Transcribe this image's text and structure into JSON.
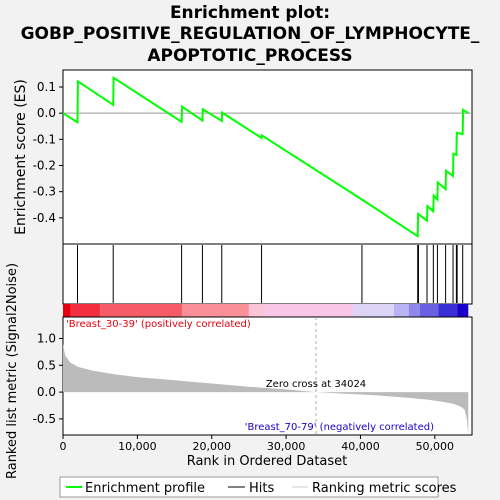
{
  "chart_data": {
    "type": "line",
    "title_lines": [
      "Enrichment plot:",
      "GOBP_POSITIVE_REGULATION_OF_LYMPHOCYTE_",
      "APOPTOTIC_PROCESS"
    ],
    "xlabel": "Rank in Ordered Dataset",
    "xlim": [
      0,
      55000
    ],
    "x_ticks": [
      0,
      10000,
      20000,
      30000,
      40000,
      50000
    ],
    "x_tick_labels": [
      "0",
      "10,000",
      "20,000",
      "30,000",
      "40,000",
      "50,000"
    ],
    "es_panel": {
      "ylabel": "Enrichment score (ES)",
      "ylim": [
        -0.5,
        0.165
      ],
      "y_ticks": [
        -0.4,
        -0.3,
        -0.2,
        -0.1,
        0.0,
        0.1
      ],
      "y_tick_labels": [
        "-0.4",
        "-0.3",
        "-0.2",
        "-0.1",
        "0.0",
        "0.1"
      ],
      "series": [
        {
          "name": "Enrichment profile",
          "color": "#00ff00",
          "x": [
            0,
            1950,
            2000,
            6750,
            6800,
            15950,
            16000,
            18750,
            18800,
            21350,
            21400,
            26700,
            26750,
            40200,
            47700,
            47750,
            48950,
            49000,
            49800,
            49850,
            50350,
            50400,
            51450,
            51500,
            52450,
            52500,
            52900,
            52950,
            53750,
            53800,
            54500
          ],
          "y": [
            0.0,
            -0.035,
            0.122,
            0.032,
            0.135,
            -0.033,
            0.025,
            -0.028,
            0.015,
            -0.03,
            0.002,
            -0.095,
            -0.085,
            -0.33,
            -0.47,
            -0.385,
            -0.41,
            -0.355,
            -0.375,
            -0.315,
            -0.33,
            -0.265,
            -0.29,
            -0.22,
            -0.24,
            -0.155,
            -0.16,
            -0.075,
            -0.08,
            0.013,
            0.0
          ]
        }
      ]
    },
    "hits": [
      1950,
      6750,
      15950,
      18750,
      21350,
      26700,
      40200,
      47700,
      47800,
      48950,
      49800,
      50350,
      51450,
      52450,
      52900,
      53000,
      53750
    ],
    "ranking_bar": {
      "segments": [
        {
          "from": 0,
          "to": 1000,
          "color": "#e8000e"
        },
        {
          "from": 1000,
          "to": 5000,
          "color": "#f32e3e"
        },
        {
          "from": 5000,
          "to": 16000,
          "color": "#f65c68"
        },
        {
          "from": 16000,
          "to": 25000,
          "color": "#f99098"
        },
        {
          "from": 25000,
          "to": 27000,
          "color": "#fbc5d6"
        },
        {
          "from": 27000,
          "to": 39000,
          "color": "#f9c7e6"
        },
        {
          "from": 39000,
          "to": 44500,
          "color": "#dcd5f6"
        },
        {
          "from": 44500,
          "to": 46500,
          "color": "#b8b3f2"
        },
        {
          "from": 46500,
          "to": 48000,
          "color": "#8f88ea"
        },
        {
          "from": 48000,
          "to": 50500,
          "color": "#6a60e2"
        },
        {
          "from": 50500,
          "to": 53000,
          "color": "#3a2fd6"
        },
        {
          "from": 53000,
          "to": 54500,
          "color": "#1800c8"
        }
      ]
    },
    "metric_panel": {
      "ylabel": "Ranked list metric (Signal2Noise)",
      "ylim": [
        -0.8,
        1.4
      ],
      "y_ticks": [
        -0.5,
        0.0,
        0.5,
        1.0
      ],
      "y_tick_labels": [
        "-0.5",
        "0.0",
        "0.5",
        "1.0"
      ],
      "x": [
        0,
        300,
        1000,
        2000,
        4000,
        7000,
        10000,
        15000,
        20000,
        25000,
        30000,
        34024,
        38000,
        42000,
        46000,
        49000,
        51000,
        52500,
        53500,
        54000,
        54300,
        54500
      ],
      "y": [
        0.9,
        0.68,
        0.55,
        0.47,
        0.4,
        0.33,
        0.28,
        0.22,
        0.16,
        0.1,
        0.05,
        0.0,
        -0.03,
        -0.06,
        -0.1,
        -0.14,
        -0.18,
        -0.22,
        -0.27,
        -0.33,
        -0.5,
        -0.8
      ],
      "fill_color": "#bbbbbb",
      "zero_cross": 34024,
      "zero_cross_label": "Zero cross at 34024",
      "pos_label": "'Breast_30-39' (positively correlated)",
      "neg_label": "'Breast_70-79' (negatively correlated)",
      "pos_color": "#e8000e",
      "neg_color": "#1800c8"
    },
    "legend": {
      "position": "bottom",
      "items": [
        {
          "label": "Enrichment profile",
          "kind": "line",
          "color": "#00ff00"
        },
        {
          "label": "Hits",
          "kind": "line",
          "color": "#000000"
        },
        {
          "label": "Ranking metric scores",
          "kind": "line",
          "color": "#cccccc"
        }
      ]
    }
  }
}
